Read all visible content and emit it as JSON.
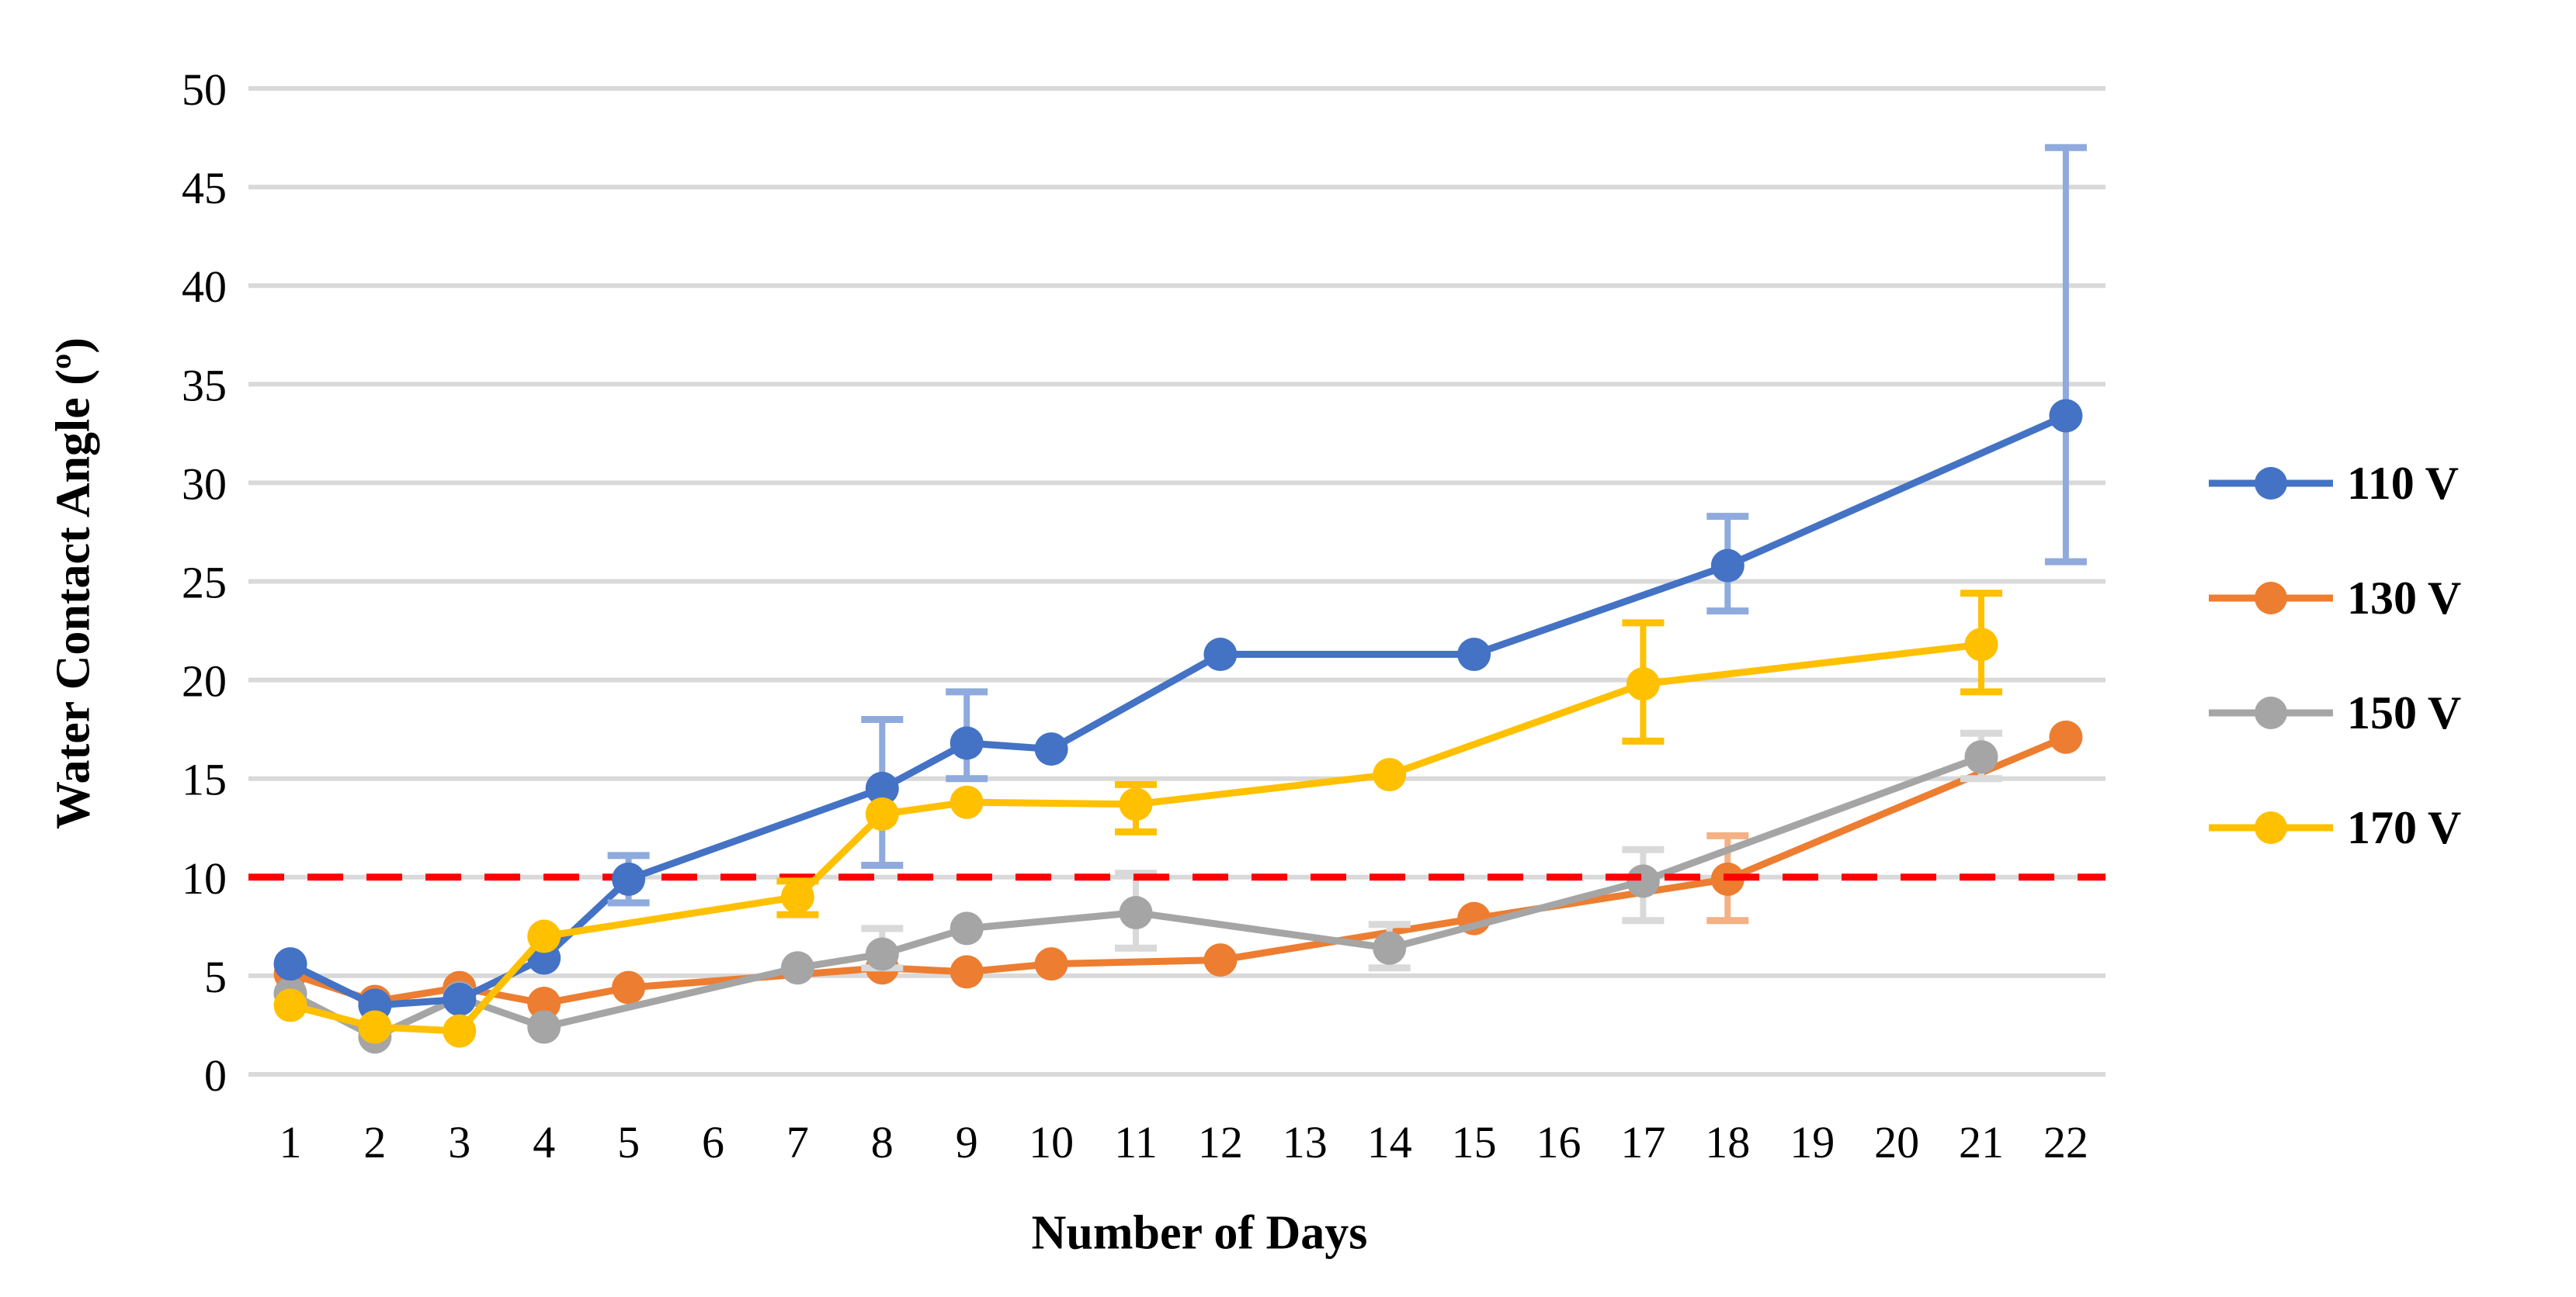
{
  "chart_data": {
    "type": "line",
    "title": "",
    "xlabel": "Number of Days",
    "ylabel": "Water Contact Angle (º)",
    "ylim": [
      0,
      50
    ],
    "grid": true,
    "legend_position": "right",
    "y_ticks": [
      0,
      5,
      10,
      15,
      20,
      25,
      30,
      35,
      40,
      45,
      50
    ],
    "x_ticks": [
      1,
      2,
      3,
      4,
      5,
      6,
      7,
      8,
      9,
      10,
      11,
      12,
      13,
      14,
      15,
      16,
      17,
      18,
      19,
      20,
      21,
      22
    ],
    "reference_line": {
      "y": 10,
      "color": "#FF0000",
      "style": "dashed"
    },
    "series": [
      {
        "name": "110 V",
        "color": "#4472C4",
        "err_color": "#8FAADC",
        "points": [
          {
            "x": 1,
            "y": 5.6
          },
          {
            "x": 2,
            "y": 3.5
          },
          {
            "x": 3,
            "y": 3.8
          },
          {
            "x": 4,
            "y": 5.9
          },
          {
            "x": 5,
            "y": 9.9,
            "lo": 8.7,
            "hi": 11.1
          },
          {
            "x": 8,
            "y": 14.5,
            "lo": 10.6,
            "hi": 18.0
          },
          {
            "x": 9,
            "y": 16.8,
            "lo": 15.0,
            "hi": 19.4
          },
          {
            "x": 10,
            "y": 16.5
          },
          {
            "x": 12,
            "y": 21.3
          },
          {
            "x": 15,
            "y": 21.3
          },
          {
            "x": 18,
            "y": 25.8,
            "lo": 23.5,
            "hi": 28.3
          },
          {
            "x": 22,
            "y": 33.4,
            "lo": 26.0,
            "hi": 47.0
          }
        ]
      },
      {
        "name": "130 V",
        "color": "#ED7D31",
        "err_color": "#F4B183",
        "points": [
          {
            "x": 1,
            "y": 5.1
          },
          {
            "x": 2,
            "y": 3.7
          },
          {
            "x": 3,
            "y": 4.4
          },
          {
            "x": 4,
            "y": 3.6
          },
          {
            "x": 5,
            "y": 4.4
          },
          {
            "x": 8,
            "y": 5.4
          },
          {
            "x": 9,
            "y": 5.2
          },
          {
            "x": 10,
            "y": 5.6
          },
          {
            "x": 12,
            "y": 5.8
          },
          {
            "x": 15,
            "y": 7.9
          },
          {
            "x": 18,
            "y": 9.9,
            "lo": 7.8,
            "hi": 12.1
          },
          {
            "x": 22,
            "y": 17.1
          }
        ]
      },
      {
        "name": "150 V",
        "color": "#A5A5A5",
        "err_color": "#D9D9D9",
        "points": [
          {
            "x": 1,
            "y": 4.1
          },
          {
            "x": 2,
            "y": 1.9
          },
          {
            "x": 3,
            "y": 3.9
          },
          {
            "x": 4,
            "y": 2.4
          },
          {
            "x": 7,
            "y": 5.4
          },
          {
            "x": 8,
            "y": 6.1,
            "lo": 5.4,
            "hi": 7.4
          },
          {
            "x": 9,
            "y": 7.4
          },
          {
            "x": 11,
            "y": 8.2,
            "lo": 6.4,
            "hi": 10.2
          },
          {
            "x": 14,
            "y": 6.4,
            "lo": 5.4,
            "hi": 7.6
          },
          {
            "x": 17,
            "y": 9.8,
            "lo": 7.8,
            "hi": 11.4
          },
          {
            "x": 21,
            "y": 16.1,
            "lo": 15.0,
            "hi": 17.3
          }
        ]
      },
      {
        "name": "170 V",
        "color": "#FFC000",
        "err_color": "#FFC000",
        "points": [
          {
            "x": 1,
            "y": 3.5
          },
          {
            "x": 2,
            "y": 2.4
          },
          {
            "x": 3,
            "y": 2.2
          },
          {
            "x": 4,
            "y": 7.0
          },
          {
            "x": 7,
            "y": 9.0,
            "lo": 8.1,
            "hi": 9.8
          },
          {
            "x": 8,
            "y": 13.2
          },
          {
            "x": 9,
            "y": 13.8
          },
          {
            "x": 11,
            "y": 13.7,
            "lo": 12.3,
            "hi": 14.7
          },
          {
            "x": 14,
            "y": 15.2
          },
          {
            "x": 17,
            "y": 19.8,
            "lo": 16.9,
            "hi": 22.9
          },
          {
            "x": 21,
            "y": 21.8,
            "lo": 19.4,
            "hi": 24.4
          }
        ]
      }
    ]
  }
}
